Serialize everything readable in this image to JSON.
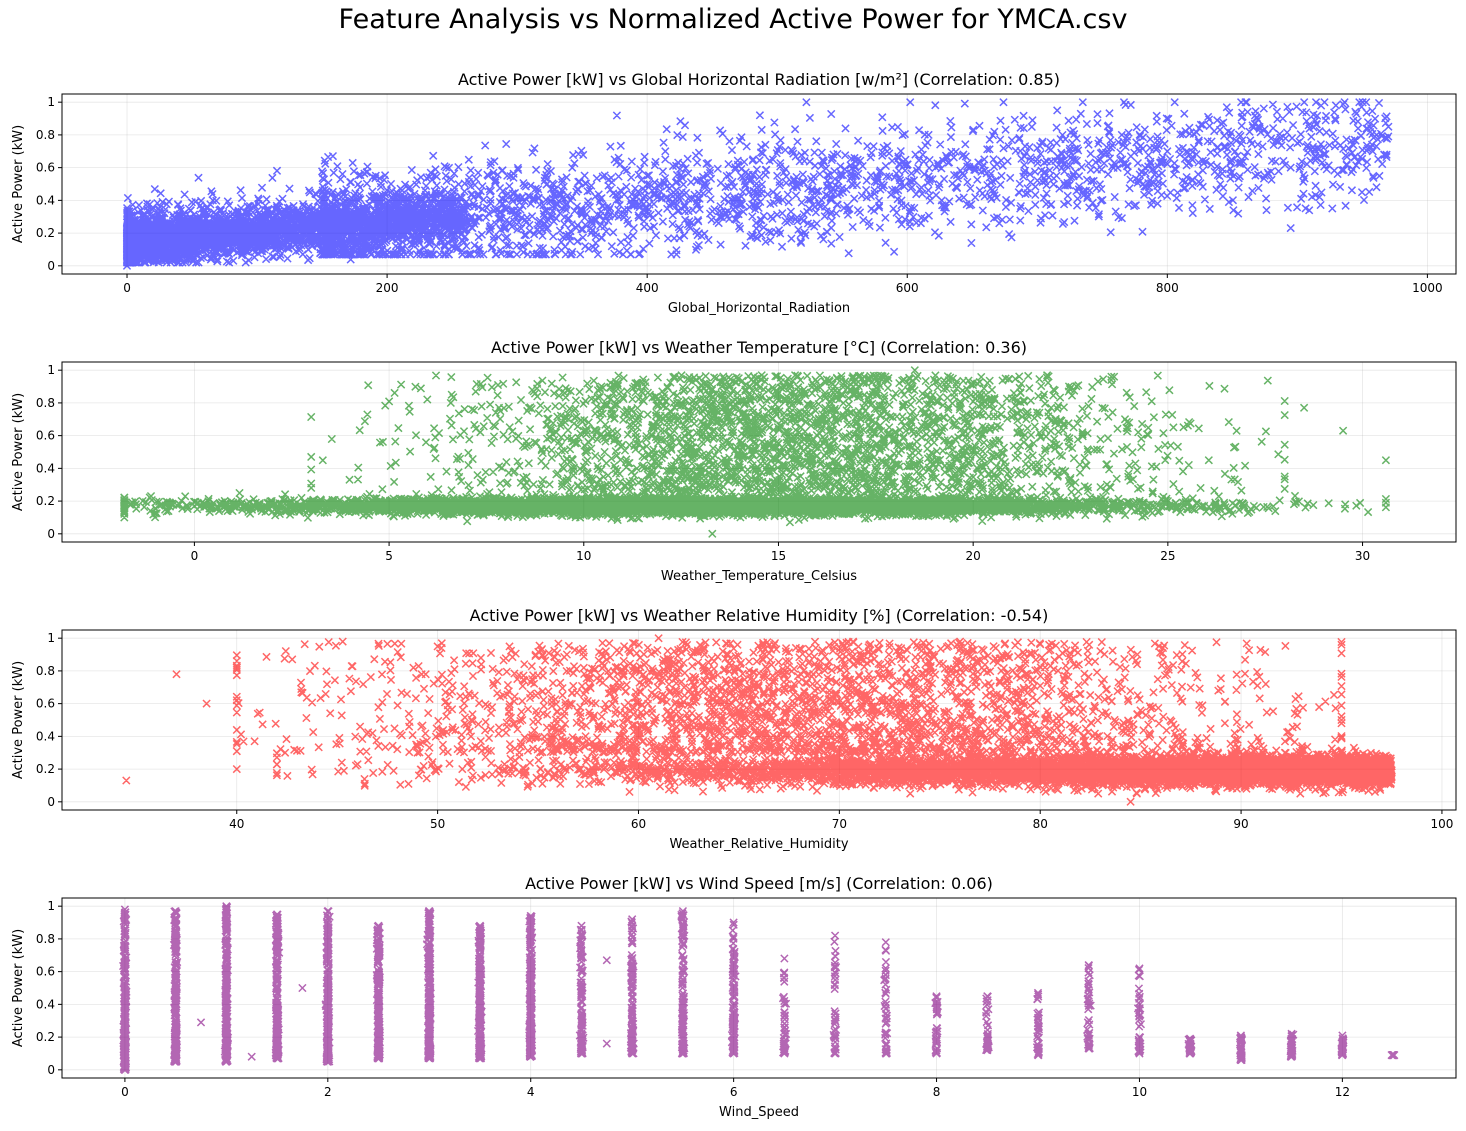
{
  "figure": {
    "title": "Feature Analysis vs Normalized Active Power for YMCA.csv"
  },
  "chart_data": [
    {
      "type": "scatter",
      "title": "Active Power [kW] vs Global Horizontal Radiation [w/m²] (Correlation: 0.85)",
      "xlabel": "Global_Horizontal_Radiation",
      "ylabel": "Active Power (kW)",
      "xlim": [
        -50,
        1022
      ],
      "ylim": [
        -0.05,
        1.05
      ],
      "xticks": [
        0,
        200,
        400,
        600,
        800,
        1000
      ],
      "yticks": [
        0.0,
        0.2,
        0.4,
        0.6,
        0.8,
        1.0
      ],
      "grid": true,
      "marker": "x",
      "color": "#0000ff",
      "correlation": 0.85,
      "trend": {
        "x_max": 970,
        "y_base": 0.12,
        "y_slope_per_unit": 0.00068,
        "spread": 0.22,
        "dense_zero_band": [
          0.02,
          0.24
        ]
      },
      "points_sample": [
        [
          0,
          0.15
        ],
        [
          50,
          0.18
        ],
        [
          100,
          0.22
        ],
        [
          150,
          0.26
        ],
        [
          200,
          0.3
        ],
        [
          300,
          0.42
        ],
        [
          400,
          0.5
        ],
        [
          500,
          0.55
        ],
        [
          600,
          0.62
        ],
        [
          700,
          0.65
        ],
        [
          800,
          0.7
        ],
        [
          900,
          0.75
        ],
        [
          970,
          0.85
        ],
        [
          735,
          1.0
        ],
        [
          0,
          0.0
        ]
      ]
    },
    {
      "type": "scatter",
      "title": "Active Power [kW] vs Weather Temperature [°C] (Correlation: 0.36)",
      "xlabel": "Weather_Temperature_Celsius",
      "ylabel": "Active Power (kW)",
      "xlim": [
        -3.4,
        32.4
      ],
      "ylim": [
        -0.05,
        1.05
      ],
      "xticks": [
        0,
        5,
        10,
        15,
        20,
        25,
        30
      ],
      "yticks": [
        0.0,
        0.2,
        0.4,
        0.6,
        0.8,
        1.0
      ],
      "grid": true,
      "marker": "x",
      "color": "#008000",
      "correlation": 0.36,
      "trend": {
        "x_min": -1.8,
        "x_max": 30.6,
        "base_band": [
          0.1,
          0.25
        ],
        "upper_cloud_x": [
          5,
          27
        ],
        "upper_max": 1.0
      },
      "points_sample": [
        [
          -1.8,
          0.1
        ],
        [
          0,
          0.17
        ],
        [
          5,
          0.18
        ],
        [
          10,
          0.2
        ],
        [
          15,
          0.2
        ],
        [
          18.5,
          1.0
        ],
        [
          20,
          0.2
        ],
        [
          25,
          0.2
        ],
        [
          28.5,
          0.77
        ],
        [
          29.5,
          0.63
        ],
        [
          30.6,
          0.45
        ],
        [
          30.6,
          0.19
        ],
        [
          13.3,
          0.0
        ]
      ]
    },
    {
      "type": "scatter",
      "title": "Active Power [kW] vs Weather Relative Humidity [%] (Correlation: -0.54)",
      "xlabel": "Weather_Relative_Humidity",
      "ylabel": "Active Power (kW)",
      "xlim": [
        31.3,
        100.7
      ],
      "ylim": [
        -0.05,
        1.05
      ],
      "xticks": [
        40,
        50,
        60,
        70,
        80,
        90,
        100
      ],
      "yticks": [
        0.0,
        0.2,
        0.4,
        0.6,
        0.8,
        1.0
      ],
      "grid": true,
      "marker": "x",
      "color": "#ff0000",
      "correlation": -0.54,
      "trend": {
        "x_min": 34.5,
        "x_max": 97.5,
        "base_band": [
          0.1,
          0.3
        ],
        "upper_cloud_x": [
          40,
          92
        ],
        "upper_max": 1.0
      },
      "points_sample": [
        [
          34.5,
          0.13
        ],
        [
          37,
          0.78
        ],
        [
          38.5,
          0.6
        ],
        [
          40,
          0.2
        ],
        [
          50,
          0.95
        ],
        [
          61,
          1.0
        ],
        [
          70,
          0.2
        ],
        [
          80,
          0.2
        ],
        [
          84.5,
          0.0
        ],
        [
          90,
          0.2
        ],
        [
          95,
          0.5
        ],
        [
          97.5,
          0.18
        ]
      ]
    },
    {
      "type": "scatter",
      "title": "Active Power [kW] vs Wind Speed [m/s] (Correlation: 0.06)",
      "xlabel": "Wind_Speed",
      "ylabel": "Active Power (kW)",
      "xlim": [
        -0.62,
        13.12
      ],
      "ylim": [
        -0.05,
        1.05
      ],
      "xticks": [
        0,
        2,
        4,
        6,
        8,
        10,
        12
      ],
      "yticks": [
        0.0,
        0.2,
        0.4,
        0.6,
        0.8,
        1.0
      ],
      "grid": true,
      "marker": "x",
      "color": "#800080",
      "correlation": 0.06,
      "columns": [
        {
          "x": 0,
          "ymin": 0.0,
          "ymax": 0.98
        },
        {
          "x": 0.5,
          "ymin": 0.05,
          "ymax": 0.97
        },
        {
          "x": 1,
          "ymin": 0.05,
          "ymax": 1.0
        },
        {
          "x": 1.5,
          "ymin": 0.07,
          "ymax": 0.95
        },
        {
          "x": 2,
          "ymin": 0.05,
          "ymax": 0.97
        },
        {
          "x": 2.5,
          "ymin": 0.07,
          "ymax": 0.88
        },
        {
          "x": 3,
          "ymin": 0.07,
          "ymax": 0.97
        },
        {
          "x": 3.5,
          "ymin": 0.07,
          "ymax": 0.88
        },
        {
          "x": 4,
          "ymin": 0.08,
          "ymax": 0.94
        },
        {
          "x": 4.5,
          "ymin": 0.1,
          "ymax": 0.88
        },
        {
          "x": 5,
          "ymin": 0.1,
          "ymax": 0.92
        },
        {
          "x": 5.5,
          "ymin": 0.1,
          "ymax": 0.97
        },
        {
          "x": 6,
          "ymin": 0.1,
          "ymax": 0.9
        },
        {
          "x": 6.5,
          "ymin": 0.1,
          "ymax": 0.68
        },
        {
          "x": 7,
          "ymin": 0.1,
          "ymax": 0.82
        },
        {
          "x": 7.5,
          "ymin": 0.1,
          "ymax": 0.78
        },
        {
          "x": 8,
          "ymin": 0.1,
          "ymax": 0.45
        },
        {
          "x": 8.5,
          "ymin": 0.12,
          "ymax": 0.45
        },
        {
          "x": 9,
          "ymin": 0.09,
          "ymax": 0.47
        },
        {
          "x": 9.5,
          "ymin": 0.13,
          "ymax": 0.64
        },
        {
          "x": 10,
          "ymin": 0.1,
          "ymax": 0.62
        },
        {
          "x": 10.5,
          "ymin": 0.1,
          "ymax": 0.19
        },
        {
          "x": 11,
          "ymin": 0.06,
          "ymax": 0.21
        },
        {
          "x": 11.5,
          "ymin": 0.08,
          "ymax": 0.22
        },
        {
          "x": 12,
          "ymin": 0.09,
          "ymax": 0.21
        },
        {
          "x": 12.5,
          "ymin": 0.09,
          "ymax": 0.09
        }
      ],
      "extra_points": [
        [
          0.75,
          0.29
        ],
        [
          1.25,
          0.08
        ],
        [
          1.75,
          0.5
        ],
        [
          4.75,
          0.67
        ],
        [
          4.75,
          0.16
        ]
      ]
    }
  ]
}
